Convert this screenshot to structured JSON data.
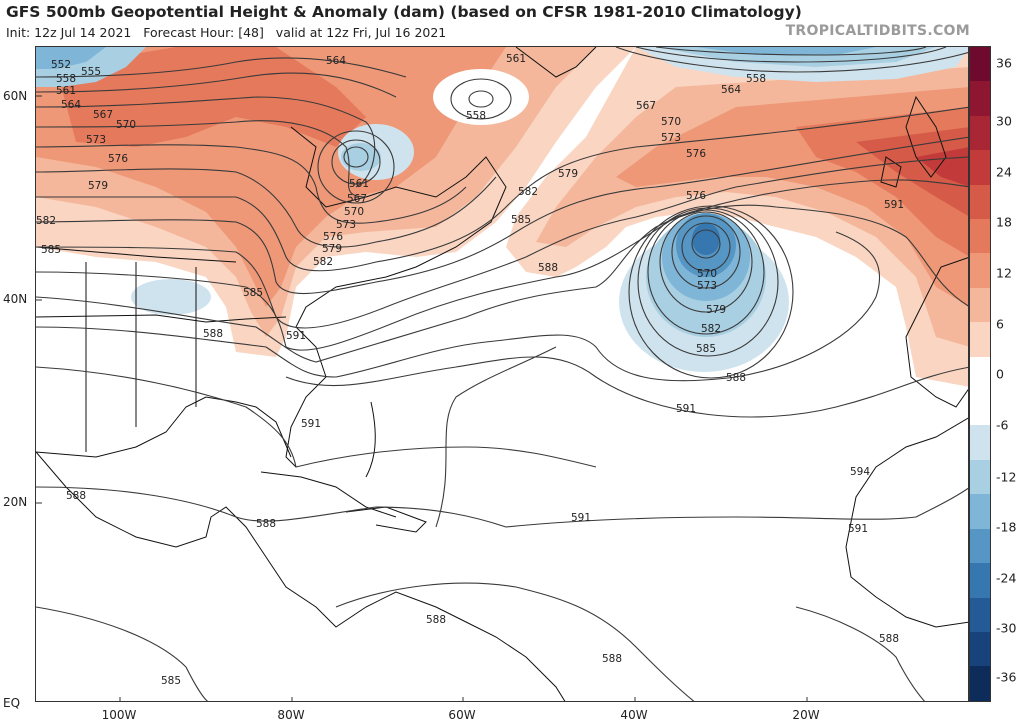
{
  "header": {
    "title": "GFS 500mb Geopotential Height & Anomaly (dam) (based on CFSR 1981-2010 Climatology)",
    "subtitle": "Init: 12z Jul 14 2021   Forecast Hour: [48]   valid at 12z Fri, Jul 16 2021",
    "credit": "TROPICALTIDBITS.COM"
  },
  "axes": {
    "lat_labels": [
      "60N",
      "40N",
      "20N",
      "EQ"
    ],
    "lon_labels": [
      "100W",
      "80W",
      "60W",
      "40W",
      "20W"
    ]
  },
  "colorbar": {
    "labels": [
      "36",
      "30",
      "24",
      "18",
      "12",
      "6",
      "0",
      "-6",
      "-12",
      "-18",
      "-24",
      "-30",
      "-36"
    ],
    "colors": [
      "#6e0a2e",
      "#8e1630",
      "#a92634",
      "#c23b3a",
      "#d65a48",
      "#e5795c",
      "#ee9878",
      "#f4b79b",
      "#f9d5c2",
      "#ffffff",
      "#ffffff",
      "#cfe3ee",
      "#a9cfe2",
      "#7fb5d6",
      "#5596c4",
      "#3777b0",
      "#245b96",
      "#17437a",
      "#0e2c5a"
    ]
  },
  "contours": {
    "labels": [
      "552",
      "555",
      "558",
      "561",
      "564",
      "567",
      "570",
      "573",
      "576",
      "579",
      "582",
      "585",
      "588",
      "591",
      "594"
    ]
  },
  "map_labels": {
    "a": "564",
    "b": "561",
    "c": "558",
    "d": "558",
    "e": "564",
    "f": "567",
    "g": "570",
    "h": "573",
    "i": "576",
    "j": "579",
    "k": "582",
    "l": "585",
    "m": "588",
    "n": "576",
    "o": "570",
    "p": "573",
    "q": "579",
    "r": "582",
    "s": "585",
    "t": "588",
    "u": "591",
    "v": "591",
    "w": "591",
    "x": "591",
    "y": "594",
    "z": "591",
    "aa": "588",
    "ab": "588",
    "ac": "588",
    "ad": "588",
    "ae": "585",
    "af": "588",
    "ba": "552",
    "bb": "555",
    "bc": "558",
    "bd": "561",
    "be": "564",
    "bf": "567",
    "bg": "570",
    "bh": "573",
    "bi": "576",
    "bj": "579",
    "ca": "561",
    "cb": "567",
    "cc": "570",
    "cd": "573",
    "ce": "576",
    "cf": "579",
    "cg": "582",
    "ch": "585",
    "ci": "591",
    "cj": "582",
    "ck": "585",
    "cl": "588"
  }
}
